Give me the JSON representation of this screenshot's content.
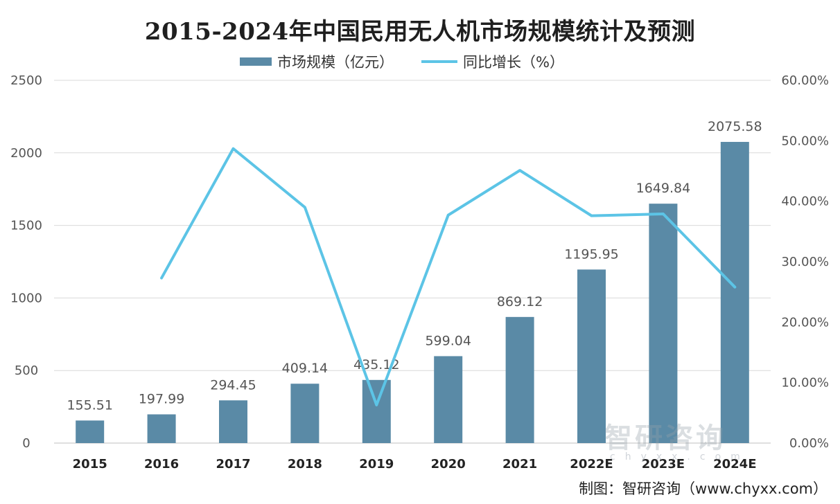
{
  "chart_data": {
    "type": "bar+line",
    "title": "2015-2024年中国民用无人机市场规模统计及预测",
    "categories": [
      "2015",
      "2016",
      "2017",
      "2018",
      "2019",
      "2020",
      "2021",
      "2022E",
      "2023E",
      "2024E"
    ],
    "series": [
      {
        "name": "市场规模（亿元）",
        "type": "bar",
        "axis": "left",
        "values": [
          155.51,
          197.99,
          294.45,
          409.14,
          435.12,
          599.04,
          869.12,
          1195.95,
          1649.84,
          2075.58
        ],
        "data_labels": [
          "155.51",
          "197.99",
          "294.45",
          "409.14",
          "435.12",
          "599.04",
          "869.12",
          "1195.95",
          "1649.84",
          "2075.58"
        ]
      },
      {
        "name": "同比增长（%）",
        "type": "line",
        "axis": "right",
        "values": [
          null,
          27.3,
          48.7,
          39.0,
          6.3,
          37.7,
          45.1,
          37.6,
          37.9,
          25.8
        ]
      }
    ],
    "left_axis": {
      "min": 0,
      "max": 2500,
      "ticks": [
        "0",
        "500",
        "1000",
        "1500",
        "2000",
        "2500"
      ]
    },
    "right_axis": {
      "min": 0,
      "max": 60,
      "ticks": [
        "0.00%",
        "10.00%",
        "20.00%",
        "30.00%",
        "40.00%",
        "50.00%",
        "60.00%"
      ]
    },
    "grid": true,
    "legend_position": "top-center",
    "colors": {
      "bar": "#5a8aa6",
      "line": "#5cc4e6",
      "grid": "#d9d9d9",
      "axis": "#bfbfbf"
    }
  },
  "source": "制图：智研咨询（www.chyxx.com）",
  "watermark": {
    "text": "智研咨询",
    "sub": "chyxx.com"
  }
}
